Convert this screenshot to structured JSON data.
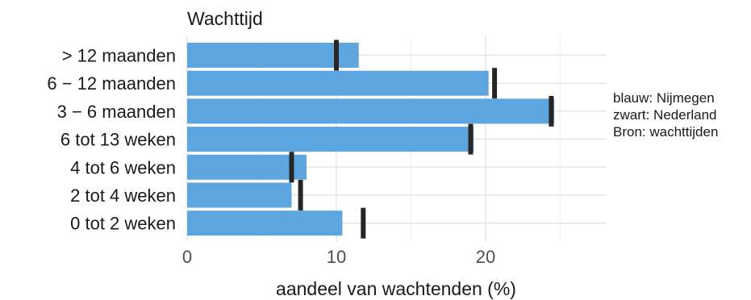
{
  "chart_data": {
    "type": "bar",
    "orientation": "horizontal",
    "title": "Wachttijd",
    "xlabel": "aandeel van wachtenden (%)",
    "ylabel": "",
    "categories": [
      "> 12 maanden",
      "6 − 12 maanden",
      "3 − 6 maanden",
      "6 tot 13 weken",
      "4 tot 6 weken",
      "2 tot 4 weken",
      "0 tot 2 weken"
    ],
    "series": [
      {
        "name": "Nijmegen",
        "mark": "bar",
        "color": "#5DA5DF",
        "values": [
          11.5,
          20.2,
          24.6,
          19.2,
          8.0,
          7.0,
          10.4
        ]
      },
      {
        "name": "Nederland",
        "mark": "tick",
        "color": "#262626",
        "values": [
          10.0,
          20.6,
          24.4,
          19.0,
          7.0,
          7.6,
          11.8
        ]
      }
    ],
    "x_ticks": [
      0,
      10,
      20
    ],
    "xlim": [
      0,
      28
    ],
    "grid": true,
    "legend": "right"
  },
  "notes": [
    "blauw: Nijmegen",
    "zwart: Nederland",
    "Bron: wachttijden"
  ]
}
